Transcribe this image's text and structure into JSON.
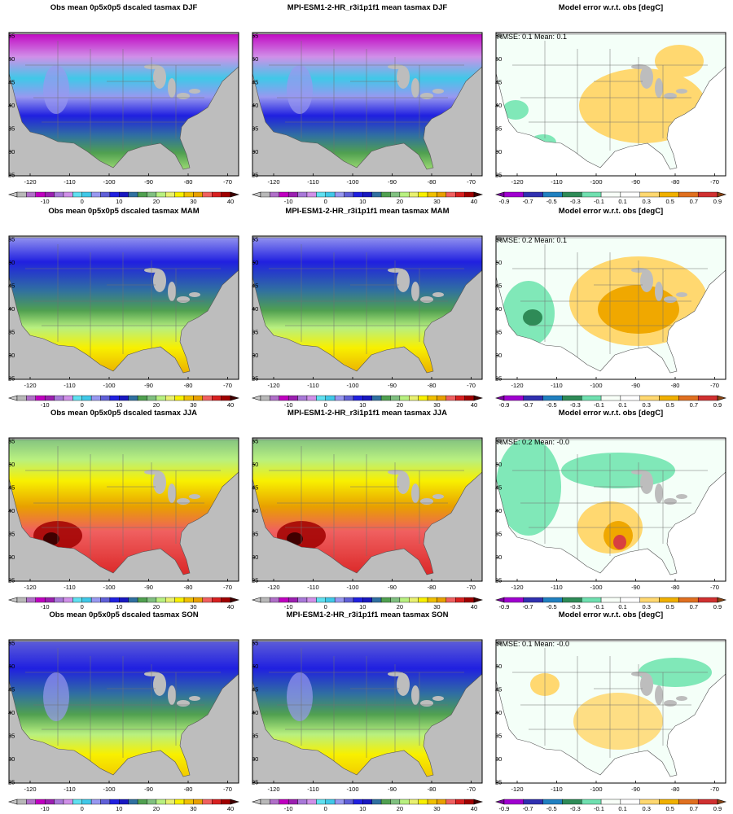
{
  "rows": [
    {
      "season": "DJF",
      "titles": [
        "Obs mean 0p5x0p5 dscaled tasmax DJF",
        "MPI-ESM1-2-HR_r3i1p1f1 mean tasmax DJF",
        "Model error w.r.t. obs [degC]"
      ],
      "stats": "RMSE: 0.1  Mean: 0.1"
    },
    {
      "season": "MAM",
      "titles": [
        "Obs mean 0p5x0p5 dscaled tasmax MAM",
        "MPI-ESM1-2-HR_r3i1p1f1 mean tasmax MAM",
        "Model error w.r.t. obs [degC]"
      ],
      "stats": "RMSE: 0.2  Mean: 0.1"
    },
    {
      "season": "JJA",
      "titles": [
        "Obs mean 0p5x0p5 dscaled tasmax JJA",
        "MPI-ESM1-2-HR_r3i1p1f1 mean tasmax JJA",
        "Model error w.r.t. obs [degC]"
      ],
      "stats": "RMSE: 0.2  Mean: -0.0"
    },
    {
      "season": "SON",
      "titles": [
        "Obs mean 0p5x0p5 dscaled tasmax SON",
        "MPI-ESM1-2-HR_r3i1p1f1 mean tasmax SON",
        "Model error w.r.t. obs [degC]"
      ],
      "stats": "RMSE: 0.1  Mean: -0.0"
    }
  ],
  "axes": {
    "lon_ticks": [
      "-120",
      "-110",
      "-100",
      "-90",
      "-80",
      "-70"
    ],
    "lat_ticks": [
      "55",
      "50",
      "45",
      "40",
      "35",
      "30",
      "25"
    ]
  },
  "colorbars": {
    "temp_labels": [
      "-10",
      "0",
      "10",
      "20",
      "30",
      "40"
    ],
    "temp_colors": [
      "#c8c8c8",
      "#b8b8b8",
      "#b070c8",
      "#c000c0",
      "#9b1fb0",
      "#a878d8",
      "#d090e8",
      "#60e0f0",
      "#40c8e8",
      "#9898f0",
      "#6060d8",
      "#2020e0",
      "#1818c0",
      "#3070a0",
      "#50a050",
      "#80c080",
      "#b8f080",
      "#e8f070",
      "#f8f000",
      "#f0c000",
      "#e8a000",
      "#f06060",
      "#d82020",
      "#a00000",
      "#400000"
    ],
    "err_labels": [
      "-0.9",
      "-0.7",
      "-0.5",
      "-0.3",
      "-0.1",
      "0.1",
      "0.3",
      "0.5",
      "0.7",
      "0.9"
    ],
    "err_colors": [
      "#7a00a0",
      "#a000d0",
      "#3030b0",
      "#2080c0",
      "#2e8b57",
      "#70e0b0",
      "#f8fff8",
      "#ffffff",
      "#ffd870",
      "#f0b000",
      "#e07020",
      "#d03030",
      "#8b4513"
    ]
  },
  "colors": {
    "land_none": "#bdbdbd",
    "err_pos": "#ffd870",
    "err_neg": "#80e8b8",
    "err_strong_pos": "#f0a800",
    "err_hot": "#d84040"
  }
}
